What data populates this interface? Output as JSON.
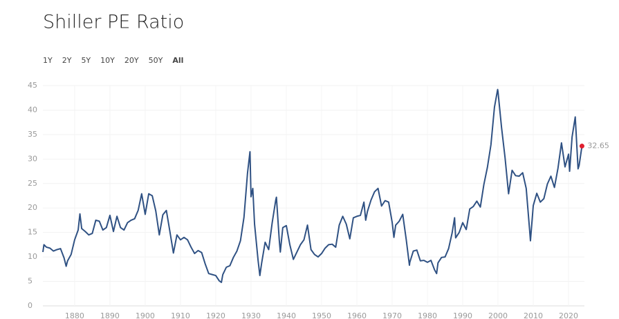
{
  "chart_data": {
    "type": "line",
    "title": "Shiller PE Ratio",
    "ranges": [
      "1Y",
      "2Y",
      "5Y",
      "10Y",
      "20Y",
      "50Y",
      "All"
    ],
    "active_range": "All",
    "x": [
      1871,
      1871.3,
      1872,
      1873,
      1874,
      1875,
      1876,
      1877,
      1877.6,
      1878,
      1879,
      1880,
      1881,
      1881.5,
      1882,
      1883,
      1884,
      1885,
      1886,
      1887,
      1888,
      1889,
      1890,
      1891,
      1892,
      1893,
      1894,
      1895,
      1896,
      1897,
      1898,
      1899,
      1900,
      1901,
      1902,
      1903,
      1904,
      1905,
      1906,
      1907,
      1908,
      1909,
      1910,
      1911,
      1912,
      1913,
      1914,
      1915,
      1916,
      1917,
      1918,
      1919,
      1920,
      1921,
      1921.6,
      1922,
      1923,
      1924,
      1925,
      1926,
      1927,
      1928,
      1929,
      1929.7,
      1930,
      1930.5,
      1931,
      1932,
      1932.5,
      1933,
      1934,
      1935,
      1936,
      1937,
      1937.2,
      1938,
      1938.3,
      1939,
      1940,
      1941,
      1942,
      1943,
      1944,
      1945,
      1946,
      1947,
      1948,
      1949,
      1950,
      1951,
      1952,
      1953,
      1954,
      1955,
      1956,
      1957,
      1958,
      1959,
      1960,
      1961,
      1962,
      1962.5,
      1963,
      1964,
      1965,
      1966,
      1967,
      1968,
      1969,
      1970,
      1970.5,
      1971,
      1972,
      1973,
      1974,
      1974.9,
      1975,
      1976,
      1977,
      1978,
      1979,
      1980,
      1981,
      1982,
      1982.6,
      1983,
      1984,
      1985,
      1986,
      1987,
      1987.7,
      1988,
      1989,
      1990,
      1991,
      1992,
      1993,
      1994,
      1995,
      1996,
      1997,
      1998,
      1999,
      1999.9,
      2000,
      2001,
      2002,
      2003,
      2004,
      2005,
      2006,
      2007,
      2008,
      2009,
      2009.2,
      2010,
      2011,
      2012,
      2013,
      2014,
      2015,
      2016,
      2017,
      2018,
      2019,
      2020,
      2020.3,
      2021,
      2021.9,
      2022.7,
      2023,
      2023.8
    ],
    "series": [
      {
        "name": "Shiller PE Ratio",
        "color": "#2f5183",
        "values": [
          11,
          12.5,
          12,
          11.8,
          11.2,
          11.5,
          11.7,
          9.8,
          8.1,
          9.2,
          10.5,
          13.5,
          15.5,
          18.8,
          15.8,
          15.2,
          14.5,
          14.8,
          17.5,
          17.3,
          15.5,
          16,
          18.5,
          15.2,
          18.3,
          16,
          15.5,
          17,
          17.5,
          17.8,
          19.5,
          22.9,
          18.7,
          22.9,
          22.5,
          19.4,
          14.5,
          18.6,
          19.5,
          15.2,
          10.8,
          14.5,
          13.5,
          14,
          13.5,
          12,
          10.7,
          11.3,
          10.9,
          8.6,
          6.6,
          6.4,
          6.2,
          5.1,
          4.8,
          6.4,
          7.9,
          8.2,
          9.9,
          11.2,
          13.3,
          18.1,
          27.1,
          31.5,
          22.3,
          24,
          16.7,
          9.3,
          6.2,
          8.7,
          13,
          11.5,
          17,
          21.6,
          22.2,
          13.5,
          11,
          16,
          16.4,
          12.5,
          9.5,
          11,
          12.5,
          13.5,
          16.5,
          11.5,
          10.5,
          10,
          10.7,
          11.8,
          12.5,
          12.6,
          12,
          16.5,
          18.3,
          16.7,
          13.7,
          18,
          18.3,
          18.5,
          21.2,
          17.5,
          19.3,
          21.6,
          23.3,
          24,
          20.4,
          21.5,
          21.2,
          17.1,
          14,
          16.5,
          17.3,
          18.7,
          13.5,
          8.3,
          8.9,
          11.2,
          11.4,
          9.2,
          9.3,
          8.9,
          9.3,
          7.4,
          6.6,
          8.8,
          9.9,
          10,
          11.7,
          14.9,
          18,
          13.9,
          15,
          17,
          15.6,
          19.8,
          20.3,
          21.4,
          20.2,
          24.8,
          28.3,
          32.9,
          40.6,
          44.2,
          43.8,
          36.5,
          30.3,
          22.9,
          27.7,
          26.6,
          26.5,
          27.2,
          24,
          15.2,
          13.3,
          20.5,
          23,
          21.2,
          21.9,
          24.9,
          26.5,
          24.2,
          28.1,
          33.3,
          28.4,
          31,
          27.5,
          34.5,
          38.6,
          28,
          28.7,
          32.65
        ]
      }
    ],
    "xlim": [
      1871,
      2024.5
    ],
    "xticks": [
      1880,
      1890,
      1900,
      1910,
      1920,
      1930,
      1940,
      1950,
      1960,
      1970,
      1980,
      1990,
      2000,
      2010,
      2020
    ],
    "ylim": [
      0,
      45
    ],
    "yticks": [
      0,
      5,
      10,
      15,
      20,
      25,
      30,
      35,
      40,
      45
    ],
    "grid": true,
    "last_point_color": "#e0202f"
  }
}
